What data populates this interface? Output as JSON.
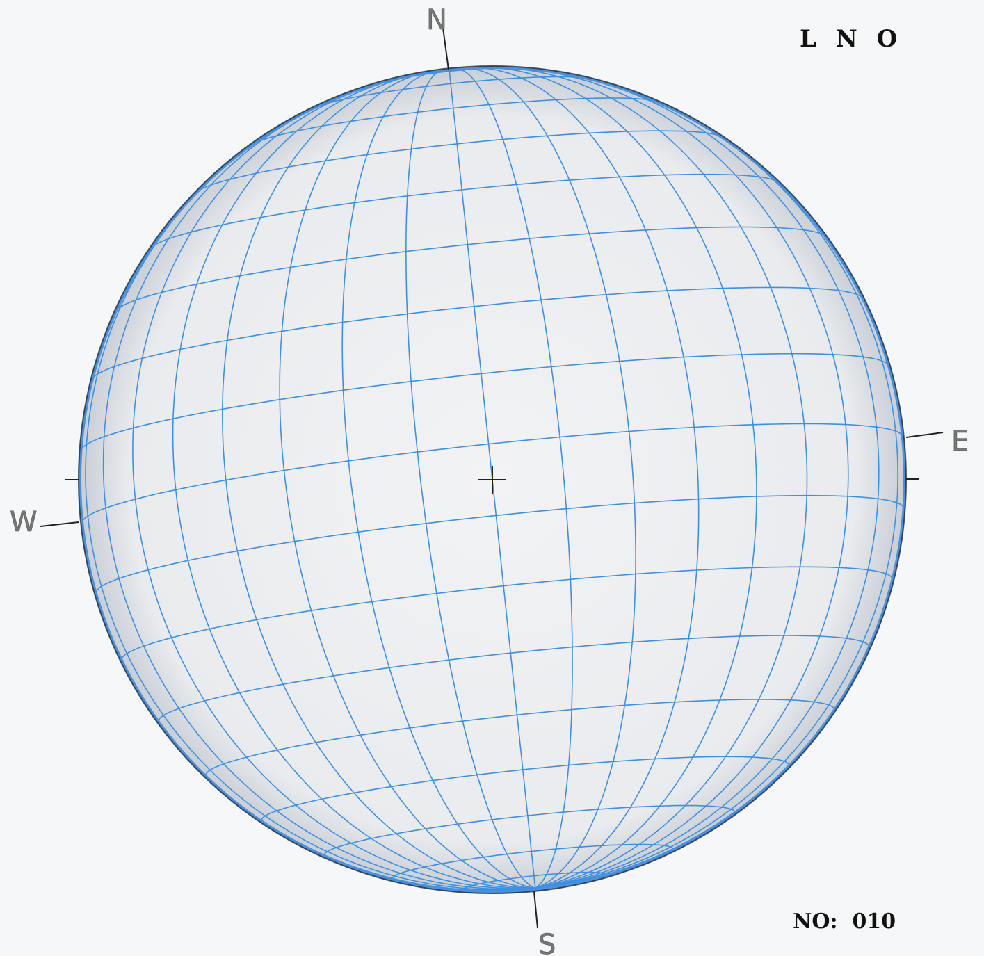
{
  "observatory_label": "L N O",
  "plate_number_label": "NO:  010",
  "directions": {
    "north": "N",
    "south": "S",
    "east": "E",
    "west": "W"
  },
  "colors": {
    "grid_line": "#3f8fe0",
    "limb": "#1e2a38",
    "disk_fill": "#eef0f2",
    "background": "#f6f7f8"
  },
  "grid": {
    "latitude_step_deg": 10,
    "longitude_step_deg": 10,
    "central_cross": true
  }
}
